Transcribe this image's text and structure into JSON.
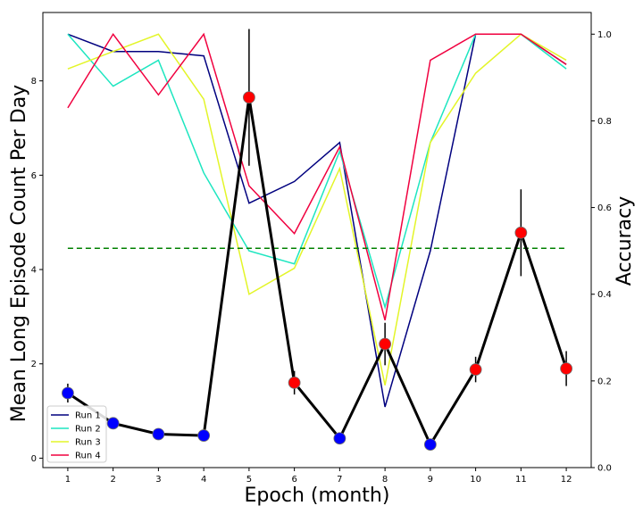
{
  "chart_data": {
    "type": "line",
    "xlabel": "Epoch (month)",
    "ylabel_left": "Mean Long Episode Count Per Day",
    "ylabel_right": "Accuracy",
    "x": [
      1,
      2,
      3,
      4,
      5,
      6,
      7,
      8,
      9,
      10,
      11,
      12
    ],
    "x_tick_labels": [
      "1",
      "2",
      "3",
      "4",
      "5",
      "6",
      "7",
      "8",
      "9",
      "10",
      "11",
      "12"
    ],
    "xlim": [
      0.45,
      12.55
    ],
    "ylim_left": [
      -0.2,
      9.45
    ],
    "ylim_right": [
      0.0,
      1.05
    ],
    "yticks_left": [
      0,
      2,
      4,
      6,
      8
    ],
    "yticks_left_labels": [
      "0",
      "2",
      "4",
      "6",
      "8"
    ],
    "yticks_right": [
      0.0,
      0.2,
      0.4,
      0.6,
      0.8,
      1.0
    ],
    "yticks_right_labels": [
      "0.0",
      "0.2",
      "0.4",
      "0.6",
      "0.8",
      "1.0"
    ],
    "grid": false,
    "legend_placement": "lower-left",
    "main_series": {
      "color": "#000000",
      "values": [
        1.38,
        0.74,
        0.51,
        0.48,
        7.65,
        1.6,
        0.42,
        2.42,
        0.29,
        1.88,
        4.78,
        1.9
      ],
      "errors": [
        0.2,
        0.1,
        0.05,
        0.05,
        1.45,
        0.25,
        0.05,
        0.45,
        0.05,
        0.27,
        0.92,
        0.37
      ],
      "marker_colors": [
        "#0000ff",
        "#0000ff",
        "#0000ff",
        "#0000ff",
        "#ff0000",
        "#ff0000",
        "#0000ff",
        "#ff0000",
        "#0000ff",
        "#ff0000",
        "#ff0000",
        "#ff0000"
      ]
    },
    "threshold": {
      "value": 4.45,
      "axis": "left",
      "color": "#008000"
    },
    "series": [
      {
        "name": "Run 1",
        "color": "#00007f",
        "axis": "right",
        "values": [
          1.0,
          0.96,
          0.96,
          0.95,
          0.61,
          0.66,
          0.75,
          0.14,
          0.5,
          1.0,
          1.0,
          0.93
        ]
      },
      {
        "name": "Run 2",
        "color": "#1de6c0",
        "axis": "right",
        "values": [
          1.0,
          0.88,
          0.94,
          0.68,
          0.5,
          0.47,
          0.73,
          0.37,
          0.75,
          1.0,
          1.0,
          0.92
        ]
      },
      {
        "name": "Run 3",
        "color": "#e3f528",
        "axis": "right",
        "values": [
          0.92,
          0.96,
          1.0,
          0.85,
          0.4,
          0.46,
          0.69,
          0.19,
          0.75,
          0.91,
          1.0,
          0.94
        ]
      },
      {
        "name": "Run 4",
        "color": "#f0003f",
        "axis": "right",
        "values": [
          0.83,
          1.0,
          0.86,
          1.0,
          0.65,
          0.54,
          0.74,
          0.34,
          0.94,
          1.0,
          1.0,
          0.93
        ]
      }
    ]
  }
}
